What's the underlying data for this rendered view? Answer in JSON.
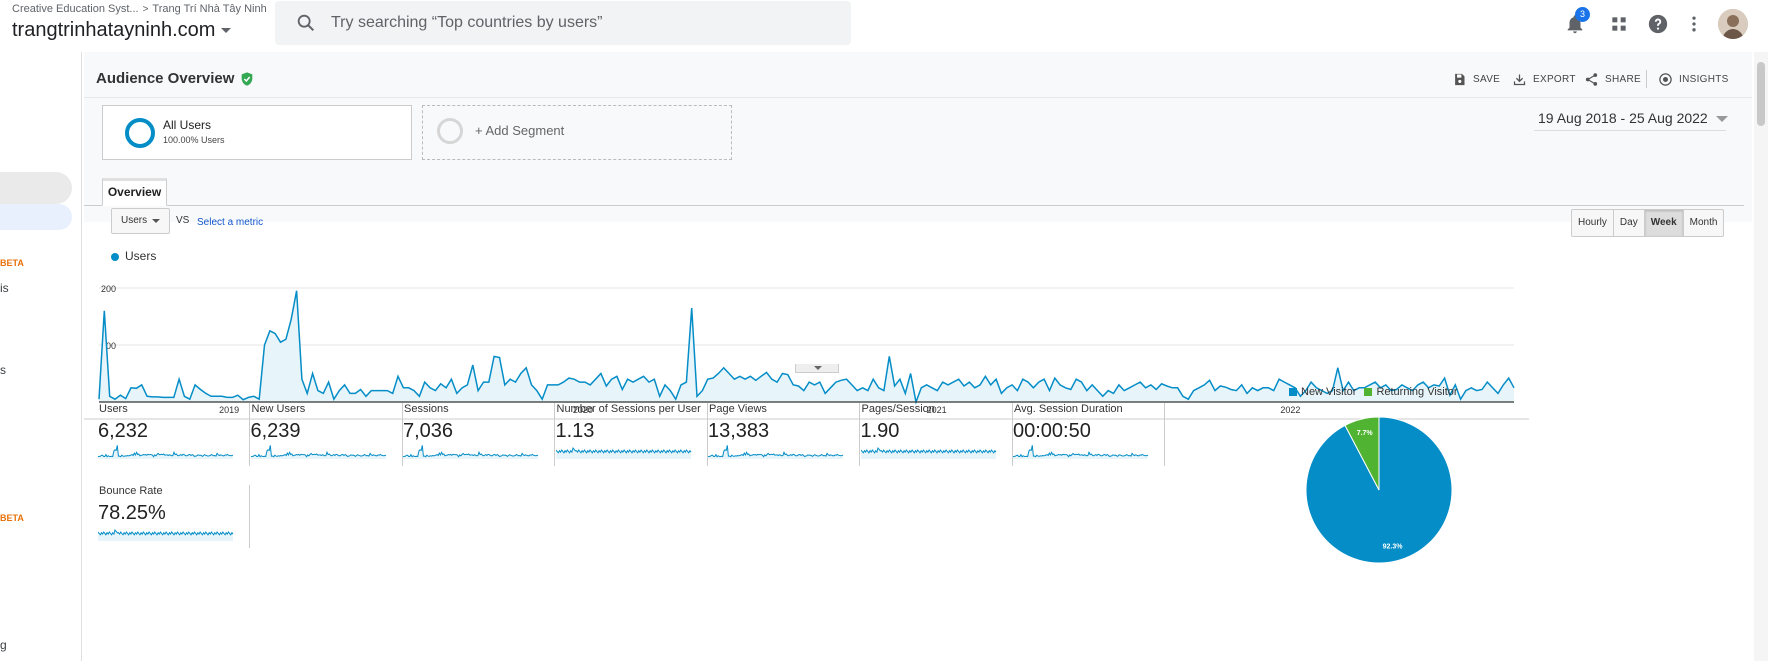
{
  "topbar": {
    "breadcrumb_account": "Creative Education Syst...",
    "breadcrumb_sep": ">",
    "breadcrumb_property": "Trang Trí Nhà Tây Ninh",
    "property_name": "trangtrinhatayninh.com",
    "search_placeholder": "Try searching “Top countries by users”",
    "notification_count": "3"
  },
  "sidebar": {
    "beta_1": "BETA",
    "frag_1": "is",
    "frag_2": "s",
    "beta_2": "BETA",
    "frag_3": "g"
  },
  "page": {
    "title": "Audience Overview",
    "actions": {
      "save": "SAVE",
      "export": "EXPORT",
      "share": "SHARE",
      "insights": "INSIGHTS"
    }
  },
  "segments": {
    "active_name": "All Users",
    "active_pct": "100.00% Users",
    "add_label": "+ Add Segment"
  },
  "date_range": "19 Aug 2018 - 25 Aug 2022",
  "tabs": {
    "overview": "Overview"
  },
  "controls": {
    "metric": "Users",
    "vs": "VS",
    "select_metric": "Select a metric",
    "granularity": [
      "Hourly",
      "Day",
      "Week",
      "Month"
    ],
    "active_granularity": "Week"
  },
  "colors": {
    "primary": "#058dc7",
    "returning": "#50b432",
    "fill": "#e7f4f9"
  },
  "chart_data": [
    {
      "type": "area",
      "series": [
        {
          "name": "Users",
          "values": [
            5,
            160,
            10,
            5,
            12,
            6,
            25,
            24,
            30,
            10,
            9,
            9,
            8,
            8,
            8,
            40,
            10,
            5,
            30,
            22,
            15,
            10,
            10,
            10,
            8,
            8,
            12,
            4,
            8,
            10,
            5,
            100,
            125,
            120,
            105,
            110,
            145,
            195,
            40,
            15,
            50,
            20,
            15,
            35,
            5,
            20,
            30,
            15,
            15,
            22,
            10,
            20,
            20,
            20,
            20,
            15,
            45,
            25,
            25,
            20,
            10,
            35,
            25,
            20,
            32,
            25,
            40,
            15,
            25,
            30,
            65,
            20,
            35,
            35,
            80,
            78,
            30,
            40,
            35,
            50,
            60,
            30,
            20,
            5,
            30,
            30,
            30,
            35,
            42,
            40,
            35,
            35,
            30,
            40,
            50,
            28,
            40,
            45,
            22,
            40,
            35,
            40,
            45,
            35,
            40,
            10,
            30,
            20,
            5,
            30,
            35,
            165,
            10,
            20,
            40,
            42,
            50,
            60,
            50,
            40,
            45,
            40,
            45,
            38,
            45,
            52,
            40,
            35,
            50,
            48,
            30,
            28,
            20,
            35,
            30,
            35,
            15,
            25,
            35,
            38,
            40,
            30,
            20,
            25,
            20,
            40,
            25,
            20,
            80,
            28,
            40,
            15,
            50,
            0,
            25,
            30,
            25,
            20,
            35,
            30,
            35,
            40,
            28,
            35,
            25,
            30,
            45,
            30,
            40,
            15,
            25,
            30,
            20,
            40,
            35,
            25,
            35,
            40,
            20,
            42,
            30,
            25,
            22,
            40,
            35,
            20,
            30,
            20,
            10,
            20,
            15,
            30,
            20,
            25,
            30,
            35,
            25,
            30,
            22,
            32,
            28,
            25,
            25,
            10,
            5,
            20,
            25,
            30,
            38,
            20,
            28,
            26,
            22,
            20,
            30,
            15,
            25,
            20,
            25,
            25,
            20,
            40,
            35,
            30,
            25,
            10,
            20,
            35,
            25,
            20,
            15,
            20,
            60,
            20,
            35,
            20,
            25,
            25,
            30,
            35,
            25,
            30,
            20,
            22,
            30,
            25,
            20,
            30,
            35,
            25,
            30,
            28,
            42,
            12,
            30,
            5,
            20,
            25,
            20,
            22,
            35,
            25,
            15,
            30,
            42,
            25
          ]
        }
      ],
      "x_ticks": [
        "2019",
        "2020",
        "2021",
        "2022"
      ],
      "y_ticks": [
        100,
        200
      ],
      "ylim": [
        0,
        200
      ],
      "grid": true,
      "legend": "top-left"
    },
    {
      "type": "pie",
      "labels": [
        "New Visitor",
        "Returning Visitor"
      ],
      "values": [
        92.3,
        7.7
      ],
      "slice_labels": [
        "92.3%",
        "7.7%"
      ],
      "legend": "top"
    }
  ],
  "metrics": [
    {
      "label": "Users",
      "value": "6,232"
    },
    {
      "label": "New Users",
      "value": "6,239"
    },
    {
      "label": "Sessions",
      "value": "7,036"
    },
    {
      "label": "Number of Sessions per User",
      "value": "1.13"
    },
    {
      "label": "Page Views",
      "value": "13,383"
    },
    {
      "label": "Pages/Session",
      "value": "1.90"
    },
    {
      "label": "Avg. Session Duration",
      "value": "00:00:50"
    },
    {
      "label": "Bounce Rate",
      "value": "78.25%"
    }
  ]
}
